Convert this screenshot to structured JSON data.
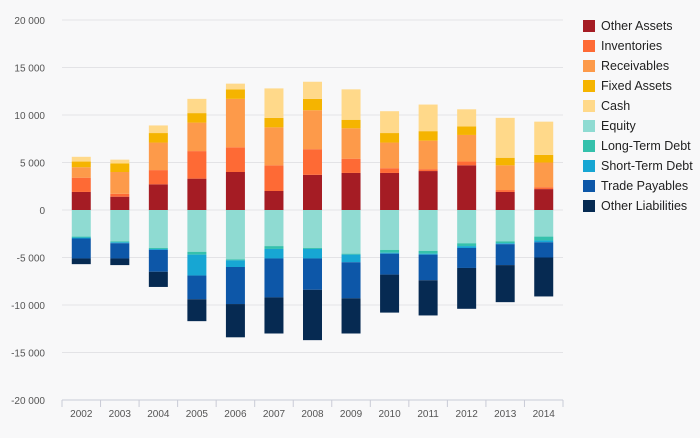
{
  "chart_data": {
    "type": "bar",
    "stacked": true,
    "categories": [
      "2002",
      "2003",
      "2004",
      "2005",
      "2006",
      "2007",
      "2008",
      "2009",
      "2010",
      "2011",
      "2012",
      "2013",
      "2014"
    ],
    "ylim": [
      -20000,
      20000
    ],
    "yticks": [
      20000,
      15000,
      10000,
      5000,
      0,
      -5000,
      -10000,
      -15000,
      -20000
    ],
    "ytick_labels": [
      "20 000",
      "15 000",
      "10 000",
      "5 000",
      "0",
      "-5 000",
      "-10 000",
      "-15 000",
      "-20 000"
    ],
    "grid": true,
    "legend_position": "right",
    "series": [
      {
        "name": "Other Assets",
        "color": "#a51c24",
        "values": [
          1900,
          1400,
          2700,
          3300,
          4000,
          2000,
          3700,
          3900,
          3900,
          4100,
          4700,
          1900,
          2200
        ]
      },
      {
        "name": "Inventories",
        "color": "#fe6a35",
        "values": [
          1500,
          300,
          1500,
          2900,
          2600,
          2700,
          2700,
          1500,
          500,
          200,
          400,
          200,
          200
        ]
      },
      {
        "name": "Receivables",
        "color": "#fd9a4a",
        "values": [
          1100,
          2300,
          2900,
          3000,
          5100,
          4000,
          4100,
          3200,
          2700,
          3000,
          2800,
          2600,
          2600
        ]
      },
      {
        "name": "Fixed Assets",
        "color": "#f5b400",
        "values": [
          600,
          900,
          1000,
          1000,
          1000,
          1000,
          1200,
          900,
          1000,
          1000,
          900,
          800,
          800
        ]
      },
      {
        "name": "Cash",
        "color": "#ffd98a",
        "values": [
          500,
          400,
          800,
          1500,
          600,
          3100,
          1800,
          3200,
          2300,
          2800,
          1800,
          4200,
          3500
        ]
      },
      {
        "name": "Equity",
        "color": "#8fdbd2",
        "values": [
          -2800,
          -3300,
          -4000,
          -4400,
          -5200,
          -3800,
          -4000,
          -4600,
          -4200,
          -4300,
          -3500,
          -3300,
          -2800
        ]
      },
      {
        "name": "Long-Term Debt",
        "color": "#35c1ac",
        "values": [
          -100,
          -100,
          -100,
          -300,
          -100,
          -300,
          -100,
          -100,
          -300,
          -300,
          -300,
          -200,
          -400
        ]
      },
      {
        "name": "Short-Term Debt",
        "color": "#17a6d3",
        "values": [
          -100,
          -100,
          -100,
          -2200,
          -700,
          -1000,
          -1000,
          -800,
          -100,
          -100,
          -200,
          -100,
          -200
        ]
      },
      {
        "name": "Trade Payables",
        "color": "#0d57a8",
        "values": [
          -2100,
          -1600,
          -2300,
          -2500,
          -3900,
          -4100,
          -3300,
          -3800,
          -2200,
          -2700,
          -2100,
          -2200,
          -1600
        ]
      },
      {
        "name": "Other Liabilities",
        "color": "#062a52",
        "values": [
          -600,
          -700,
          -1600,
          -2300,
          -3500,
          -3800,
          -5300,
          -3700,
          -4000,
          -3700,
          -4300,
          -3900,
          -4100
        ]
      }
    ]
  }
}
